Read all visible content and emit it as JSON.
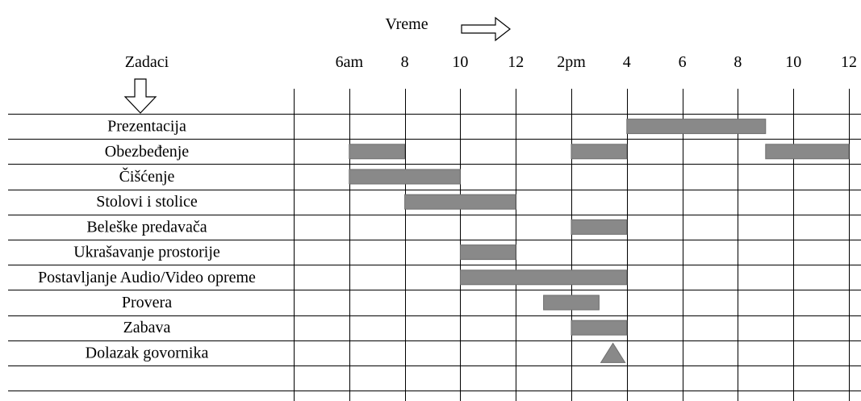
{
  "chart_data": {
    "type": "gantt",
    "title": "Vreme",
    "row_header": "Zadaci",
    "tick_labels": [
      "6am",
      "8",
      "10",
      "12",
      "2pm",
      "4",
      "6",
      "8",
      "10",
      "12"
    ],
    "tick_hours": [
      6,
      8,
      10,
      12,
      14,
      16,
      18,
      20,
      22,
      24
    ],
    "x_range_hours": [
      4,
      24
    ],
    "bar_color": "#898989",
    "tasks": [
      {
        "label": "Prezentacija",
        "bars": [
          [
            16,
            21
          ]
        ]
      },
      {
        "label": "Obezbeđenje",
        "bars": [
          [
            6,
            8
          ],
          [
            14,
            16
          ],
          [
            21,
            24
          ]
        ]
      },
      {
        "label": "Čišćenje",
        "bars": [
          [
            6,
            10
          ]
        ]
      },
      {
        "label": "Stolovi i stolice",
        "bars": [
          [
            8,
            12
          ]
        ]
      },
      {
        "label": "Beleške predavača",
        "bars": [
          [
            14,
            16
          ]
        ]
      },
      {
        "label": "Ukrašavanje prostorije",
        "bars": [
          [
            10,
            12
          ]
        ]
      },
      {
        "label": "Postavljanje Audio/Video opreme",
        "bars": [
          [
            10,
            16
          ]
        ]
      },
      {
        "label": "Provera",
        "bars": [
          [
            13,
            15
          ]
        ]
      },
      {
        "label": "Zabava",
        "bars": [
          [
            14,
            16
          ]
        ]
      },
      {
        "label": "Dolazak govornika",
        "bars": [],
        "milestone": 15.5
      },
      {
        "label": "",
        "bars": []
      }
    ]
  }
}
